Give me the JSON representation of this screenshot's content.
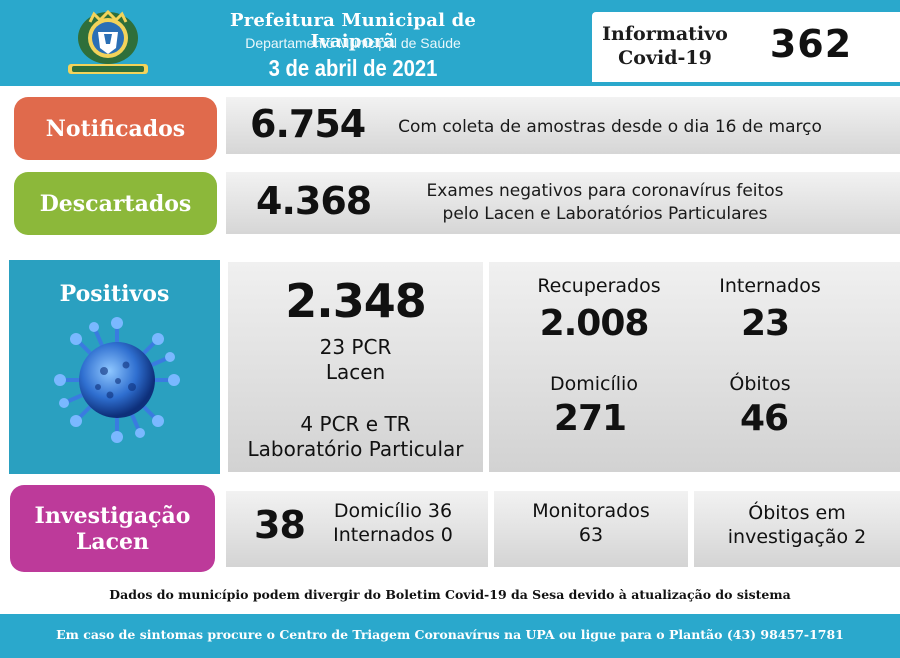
{
  "header": {
    "title": "Prefeitura Municipal de Ivaiporã",
    "subtitle": "Departamento Municipal de Saúde",
    "date": "3 de abril de 2021",
    "info_label_line1": "Informativo",
    "info_label_line2": "Covid-19",
    "info_number": "362"
  },
  "notificados": {
    "label": "Notificados",
    "value": "6.754",
    "description": "Com coleta de amostras desde o dia 16 de março"
  },
  "descartados": {
    "label": "Descartados",
    "value": "4.368",
    "description_line1": "Exames negativos para coronavírus feitos",
    "description_line2": "pelo Lacen e Laboratórios Particulares"
  },
  "positivos": {
    "label": "Positivos",
    "value": "2.348",
    "lacen_line1": "23 PCR",
    "lacen_line2": "Lacen",
    "particular_line1": "4 PCR e TR",
    "particular_line2": "Laboratório Particular"
  },
  "stats": {
    "recuperados_label": "Recuperados",
    "recuperados_value": "2.008",
    "internados_label": "Internados",
    "internados_value": "23",
    "domicilio_label": "Domicílio",
    "domicilio_value": "271",
    "obitos_label": "Óbitos",
    "obitos_value": "46"
  },
  "investigacao": {
    "label_line1": "Investigação",
    "label_line2": "Lacen",
    "value": "38",
    "domicilio": "Domicílio 36",
    "internados": "Internados 0",
    "monitorados_label": "Monitorados",
    "monitorados_value": "63",
    "obitos_line1": "Óbitos em",
    "obitos_line2": "investigação 2"
  },
  "footer": {
    "disclaimer": "Dados do município podem divergir do Boletim Covid-19 da Sesa devido à atualização do sistema",
    "contact": "Em caso de sintomas procure o Centro de Triagem Coronavírus na UPA ou ligue para o Plantão (43) 98457-1781"
  },
  "colors": {
    "header_blue": "#2aa8cc",
    "notificados": "#e06a4c",
    "descartados": "#8cb83a",
    "positivos": "#2aa0c0",
    "investigacao": "#bd3a9a"
  },
  "icons": {
    "crest": "municipal-crest-icon",
    "virus": "coronavirus-icon"
  }
}
